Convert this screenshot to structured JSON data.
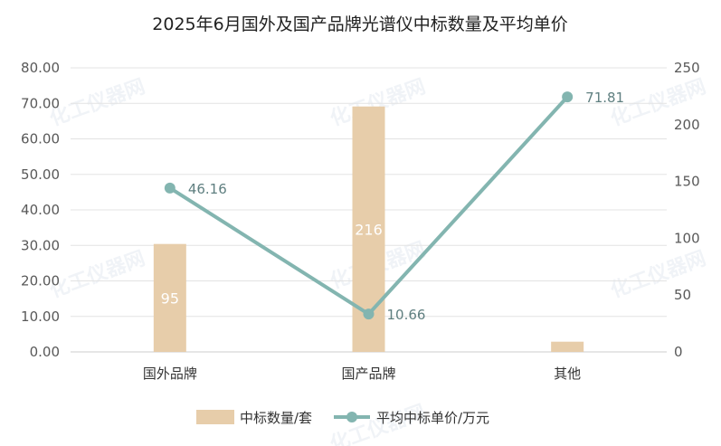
{
  "chart_data": {
    "type": "bar",
    "title": "2025年6月国外及国产品牌光谱仪中标数量及平均单价",
    "categories": [
      "国外品牌",
      "国产品牌",
      "其他"
    ],
    "series": [
      {
        "name": "中标数量/套",
        "type": "bar",
        "axis": "right",
        "values": [
          95,
          216,
          9
        ],
        "labels": [
          "95",
          "216",
          ""
        ],
        "color": "#e7cdaa"
      },
      {
        "name": "平均中标单价/万元",
        "type": "line",
        "axis": "left",
        "values": [
          46.16,
          10.66,
          71.81
        ],
        "labels": [
          "46.16",
          "10.66",
          "71.81"
        ],
        "color": "#83b5b0"
      }
    ],
    "y_left": {
      "range": [
        0,
        80
      ],
      "ticks": [
        "0.00",
        "10.00",
        "20.00",
        "30.00",
        "40.00",
        "50.00",
        "60.00",
        "70.00",
        "80.00"
      ]
    },
    "y_right": {
      "range": [
        0,
        250
      ],
      "ticks": [
        "0",
        "50",
        "100",
        "150",
        "200",
        "250"
      ]
    },
    "grid": true,
    "legend_position": "bottom"
  },
  "watermark_text": "化工仪器网"
}
